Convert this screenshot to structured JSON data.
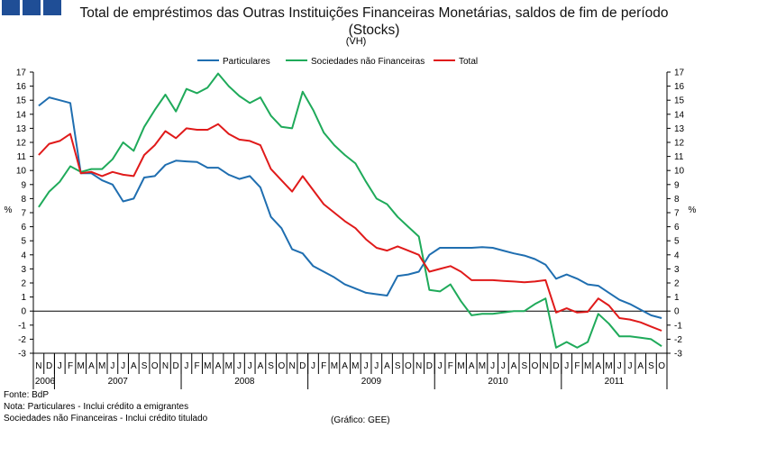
{
  "title": "Total de empréstimos das Outras Instituições Financeiras Monetárias, saldos de fim de período (Stocks)",
  "subtitle": "(VH)",
  "notes": [
    "Fonte: BdP",
    "Nota: Particulares - Inclui crédito a emigrantes",
    "Sociedades não Financeiras - Inclui crédito titulado"
  ],
  "credit": "(Gráfico: GEE)",
  "colors": {
    "particulares": "#1f6eb0",
    "sociedades": "#1faa5a",
    "total": "#e01a1a",
    "logo": "#1f4e96"
  },
  "chart_data": {
    "type": "line",
    "title": "Total de empréstimos das Outras Instituições Financeiras Monetárias, saldos de fim de período (Stocks)",
    "ylabel": "%",
    "ylabel_right": "%",
    "ylim": [
      -3,
      17
    ],
    "yticks": [
      -3,
      -2,
      -1,
      0,
      1,
      2,
      3,
      4,
      5,
      6,
      7,
      8,
      9,
      10,
      11,
      12,
      13,
      14,
      15,
      16,
      17
    ],
    "legend_position": "top",
    "x": [
      "N",
      "D",
      "J",
      "F",
      "M",
      "A",
      "M",
      "J",
      "J",
      "A",
      "S",
      "O",
      "N",
      "D",
      "J",
      "F",
      "M",
      "A",
      "M",
      "J",
      "J",
      "A",
      "S",
      "O",
      "N",
      "D",
      "J",
      "F",
      "M",
      "A",
      "M",
      "J",
      "J",
      "A",
      "S",
      "O",
      "N",
      "D",
      "J",
      "F",
      "M",
      "A",
      "M",
      "J",
      "J",
      "A",
      "S",
      "O",
      "N",
      "D",
      "J",
      "F",
      "M",
      "A",
      "M",
      "J",
      "J",
      "A",
      "S",
      "O"
    ],
    "years": [
      {
        "label": "2006",
        "start": 0,
        "end": 1
      },
      {
        "label": "2007",
        "start": 2,
        "end": 13
      },
      {
        "label": "2008",
        "start": 14,
        "end": 25
      },
      {
        "label": "2009",
        "start": 26,
        "end": 37
      },
      {
        "label": "2010",
        "start": 38,
        "end": 49
      },
      {
        "label": "2011",
        "start": 50,
        "end": 59
      }
    ],
    "series": [
      {
        "name": "Particulares",
        "values": [
          14.6,
          15.2,
          15.0,
          14.8,
          9.8,
          9.8,
          9.3,
          9.0,
          7.8,
          8.0,
          9.5,
          9.6,
          10.4,
          10.7,
          10.65,
          10.6,
          10.2,
          10.2,
          9.7,
          9.4,
          9.6,
          8.8,
          6.7,
          5.9,
          4.4,
          4.1,
          3.2,
          2.8,
          2.4,
          1.9,
          1.6,
          1.3,
          1.2,
          1.1,
          2.5,
          2.6,
          2.8,
          4.0,
          4.5,
          4.5,
          4.5,
          4.5,
          4.55,
          4.5,
          4.3,
          4.1,
          3.95,
          3.7,
          3.3,
          2.3,
          2.6,
          2.3,
          1.9,
          1.8,
          1.3,
          0.8,
          0.5,
          0.1,
          -0.3,
          -0.5
        ]
      },
      {
        "name": "Sociedades não Financeiras",
        "values": [
          7.4,
          8.5,
          9.2,
          10.3,
          9.9,
          10.1,
          10.1,
          10.8,
          12.0,
          11.4,
          13.1,
          14.3,
          15.4,
          14.2,
          15.8,
          15.5,
          15.9,
          16.9,
          16.0,
          15.3,
          14.8,
          15.2,
          13.9,
          13.1,
          13.0,
          15.6,
          14.3,
          12.7,
          11.8,
          11.1,
          10.5,
          9.2,
          8.0,
          7.6,
          6.7,
          6.0,
          5.3,
          1.5,
          1.4,
          1.9,
          0.7,
          -0.3,
          -0.2,
          -0.2,
          -0.1,
          0.0,
          0.0,
          0.5,
          0.9,
          -2.6,
          -2.2,
          -2.6,
          -2.2,
          -0.2,
          -0.9,
          -1.8,
          -1.8,
          -1.9,
          -2.0,
          -2.5
        ]
      },
      {
        "name": "Total",
        "values": [
          11.1,
          11.9,
          12.1,
          12.6,
          9.8,
          9.9,
          9.6,
          9.9,
          9.7,
          9.6,
          11.1,
          11.8,
          12.8,
          12.3,
          13.0,
          12.9,
          12.9,
          13.3,
          12.6,
          12.2,
          12.1,
          11.8,
          10.1,
          9.3,
          8.5,
          9.6,
          8.6,
          7.6,
          7.0,
          6.4,
          5.9,
          5.1,
          4.5,
          4.3,
          4.6,
          4.3,
          4.0,
          2.8,
          3.0,
          3.2,
          2.8,
          2.2,
          2.2,
          2.2,
          2.15,
          2.1,
          2.05,
          2.1,
          2.2,
          -0.1,
          0.2,
          -0.1,
          -0.05,
          0.9,
          0.4,
          -0.5,
          -0.6,
          -0.8,
          -1.1,
          -1.4
        ]
      }
    ]
  }
}
